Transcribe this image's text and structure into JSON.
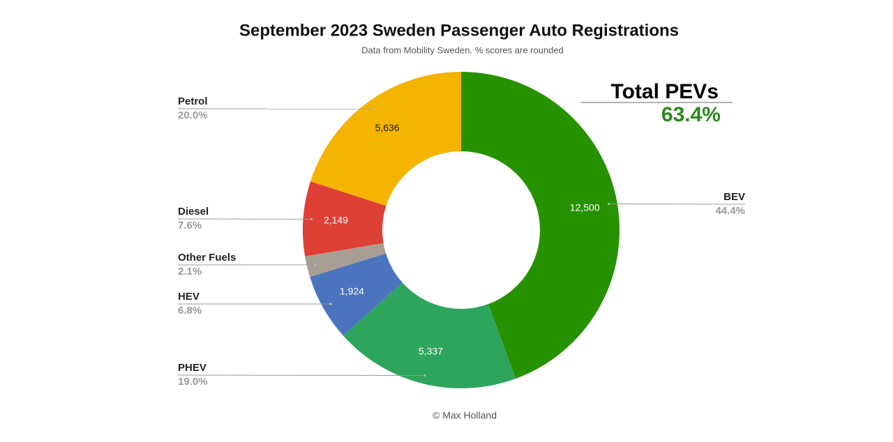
{
  "chart_data": {
    "type": "pie",
    "title": "September 2023 Sweden Passenger Auto Registrations",
    "subtitle": "Data from Mobility Sweden. % scores are rounded",
    "categories": [
      "BEV",
      "PHEV",
      "HEV",
      "Other Fuels",
      "Diesel",
      "Petrol"
    ],
    "values": [
      12500,
      5337,
      1924,
      600,
      2149,
      5636
    ],
    "value_labels": [
      "12,500",
      "5,337",
      "1,924",
      null,
      "2,149",
      "5,636"
    ],
    "percent_labels": [
      "44.4%",
      "19.0%",
      "6.8%",
      "2.1%",
      "7.6%",
      "20.0%"
    ],
    "colors": [
      "#269200",
      "#2ea55c",
      "#4a74bd",
      "#a99e93",
      "#de4035",
      "#f4b400"
    ],
    "annotation": {
      "title": "Total PEVs",
      "value": "63.4%"
    },
    "credit": "© Max Holland"
  }
}
